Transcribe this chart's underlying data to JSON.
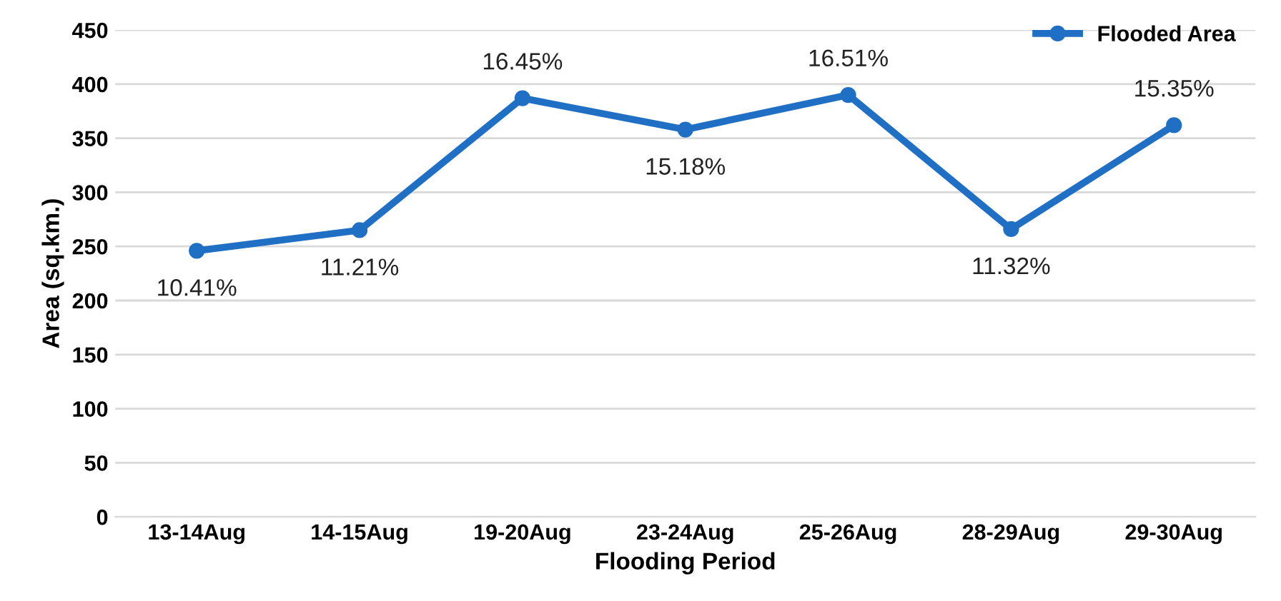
{
  "chart_data": {
    "type": "line",
    "xlabel": "Flooding Period",
    "ylabel": "Area (sq.km.)",
    "categories": [
      "13-14Aug",
      "14-15Aug",
      "19-20Aug",
      "23-24Aug",
      "25-26Aug",
      "28-29Aug",
      "29-30Aug"
    ],
    "series": [
      {
        "name": "Flooded Area",
        "color": "#1f6fc5",
        "values": [
          246,
          265,
          387,
          358,
          390,
          266,
          362
        ]
      }
    ],
    "annotations": [
      {
        "text": "10.41%",
        "x": "13-14Aug",
        "y": 246
      },
      {
        "text": "11.21%",
        "x": "14-15Aug",
        "y": 265
      },
      {
        "text": "16.45%",
        "x": "19-20Aug",
        "y": 387
      },
      {
        "text": "15.18%",
        "x": "23-24Aug",
        "y": 358
      },
      {
        "text": "16.51%",
        "x": "25-26Aug",
        "y": 390
      },
      {
        "text": "11.32%",
        "x": "28-29Aug",
        "y": 266
      },
      {
        "text": "15.35%",
        "x": "29-30Aug",
        "y": 362
      }
    ],
    "ylim": [
      0,
      450
    ],
    "yticks": [
      0,
      50,
      100,
      150,
      200,
      250,
      300,
      350,
      400,
      450
    ],
    "grid": "y",
    "legend": "top right",
    "marker": "circle",
    "line_style": "solid"
  }
}
